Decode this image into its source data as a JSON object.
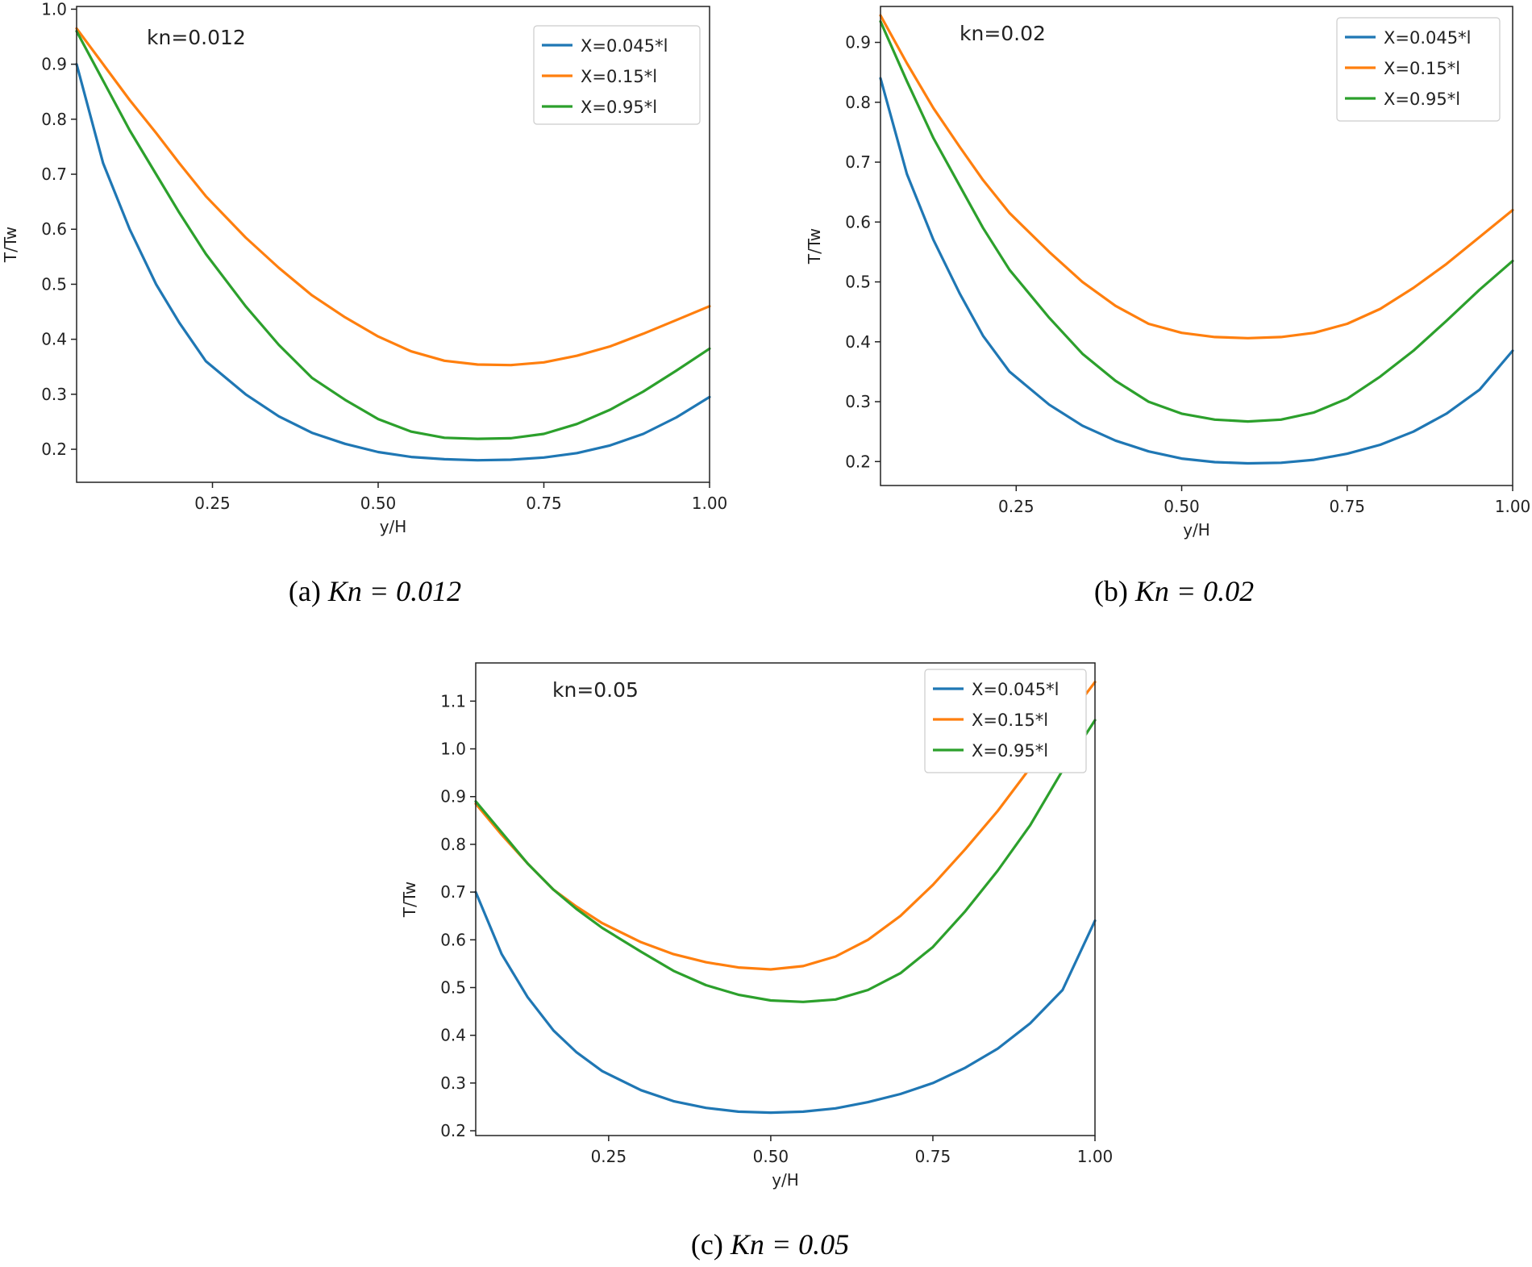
{
  "chart_data": [
    {
      "type": "line",
      "annotation": "kn=0.012",
      "xlabel": "y/H",
      "ylabel": "T/Tw",
      "xlim": [
        0.045,
        1.0
      ],
      "ylim": [
        0.14,
        1.005
      ],
      "xticks": [
        0.25,
        0.5,
        0.75,
        1.0
      ],
      "xtick_labels": [
        "0.25",
        "0.50",
        "0.75",
        "1.00"
      ],
      "yticks": [
        0.2,
        0.3,
        0.4,
        0.5,
        0.6,
        0.7,
        0.8,
        0.9,
        1.0
      ],
      "ytick_labels": [
        "0.2",
        "0.3",
        "0.4",
        "0.5",
        "0.6",
        "0.7",
        "0.8",
        "0.9",
        "1.0"
      ],
      "legend_position": "top-right",
      "caption": {
        "label": "(a)",
        "text": "Kn = 0.012"
      },
      "x": [
        0.045,
        0.085,
        0.125,
        0.165,
        0.2,
        0.24,
        0.3,
        0.35,
        0.4,
        0.45,
        0.5,
        0.55,
        0.6,
        0.65,
        0.7,
        0.75,
        0.8,
        0.85,
        0.9,
        0.95,
        1.0
      ],
      "series": [
        {
          "name": "X=0.045*l",
          "color": "#1f77b4",
          "values": [
            0.9,
            0.72,
            0.6,
            0.5,
            0.43,
            0.36,
            0.3,
            0.26,
            0.23,
            0.21,
            0.195,
            0.186,
            0.182,
            0.18,
            0.181,
            0.185,
            0.193,
            0.207,
            0.228,
            0.258,
            0.295
          ]
        },
        {
          "name": "X=0.15*l",
          "color": "#ff7f0e",
          "values": [
            0.965,
            0.9,
            0.835,
            0.775,
            0.72,
            0.66,
            0.585,
            0.53,
            0.48,
            0.44,
            0.405,
            0.378,
            0.361,
            0.354,
            0.353,
            0.358,
            0.37,
            0.387,
            0.41,
            0.435,
            0.46
          ]
        },
        {
          "name": "X=0.95*l",
          "color": "#2ca02c",
          "values": [
            0.96,
            0.87,
            0.78,
            0.7,
            0.63,
            0.555,
            0.46,
            0.39,
            0.33,
            0.29,
            0.255,
            0.232,
            0.221,
            0.219,
            0.22,
            0.228,
            0.246,
            0.272,
            0.305,
            0.343,
            0.383
          ]
        }
      ]
    },
    {
      "type": "line",
      "annotation": "kn=0.02",
      "xlabel": "y/H",
      "ylabel": "T/Tw",
      "xlim": [
        0.045,
        1.0
      ],
      "ylim": [
        0.16,
        0.96
      ],
      "xticks": [
        0.25,
        0.5,
        0.75,
        1.0
      ],
      "xtick_labels": [
        "0.25",
        "0.50",
        "0.75",
        "1.00"
      ],
      "yticks": [
        0.2,
        0.3,
        0.4,
        0.5,
        0.6,
        0.7,
        0.8,
        0.9
      ],
      "ytick_labels": [
        "0.2",
        "0.3",
        "0.4",
        "0.5",
        "0.6",
        "0.7",
        "0.8",
        "0.9"
      ],
      "legend_position": "top-right",
      "caption": {
        "label": "(b)",
        "text": "Kn = 0.02"
      },
      "x": [
        0.045,
        0.085,
        0.125,
        0.165,
        0.2,
        0.24,
        0.3,
        0.35,
        0.4,
        0.45,
        0.5,
        0.55,
        0.6,
        0.65,
        0.7,
        0.75,
        0.8,
        0.85,
        0.9,
        0.95,
        1.0
      ],
      "series": [
        {
          "name": "X=0.045*l",
          "color": "#1f77b4",
          "values": [
            0.84,
            0.68,
            0.57,
            0.48,
            0.41,
            0.35,
            0.295,
            0.26,
            0.235,
            0.217,
            0.205,
            0.199,
            0.197,
            0.198,
            0.203,
            0.213,
            0.228,
            0.25,
            0.28,
            0.32,
            0.385
          ]
        },
        {
          "name": "X=0.15*l",
          "color": "#ff7f0e",
          "values": [
            0.945,
            0.865,
            0.79,
            0.725,
            0.67,
            0.615,
            0.55,
            0.5,
            0.46,
            0.43,
            0.415,
            0.408,
            0.406,
            0.408,
            0.415,
            0.43,
            0.455,
            0.49,
            0.53,
            0.575,
            0.62
          ]
        },
        {
          "name": "X=0.95*l",
          "color": "#2ca02c",
          "values": [
            0.935,
            0.835,
            0.74,
            0.66,
            0.59,
            0.52,
            0.44,
            0.38,
            0.335,
            0.3,
            0.28,
            0.27,
            0.267,
            0.27,
            0.282,
            0.305,
            0.342,
            0.385,
            0.435,
            0.487,
            0.535
          ]
        }
      ]
    },
    {
      "type": "line",
      "annotation": "kn=0.05",
      "xlabel": "y/H",
      "ylabel": "T/Tw",
      "xlim": [
        0.045,
        1.0
      ],
      "ylim": [
        0.19,
        1.18
      ],
      "xticks": [
        0.25,
        0.5,
        0.75,
        1.0
      ],
      "xtick_labels": [
        "0.25",
        "0.50",
        "0.75",
        "1.00"
      ],
      "yticks": [
        0.2,
        0.3,
        0.4,
        0.5,
        0.6,
        0.7,
        0.8,
        0.9,
        1.0,
        1.1
      ],
      "ytick_labels": [
        "0.2",
        "0.3",
        "0.4",
        "0.5",
        "0.6",
        "0.7",
        "0.8",
        "0.9",
        "1.0",
        "1.1"
      ],
      "legend_position": "top-right",
      "caption": {
        "label": "(c)",
        "text": "Kn = 0.05"
      },
      "x": [
        0.045,
        0.085,
        0.125,
        0.165,
        0.2,
        0.24,
        0.3,
        0.35,
        0.4,
        0.45,
        0.5,
        0.55,
        0.6,
        0.65,
        0.7,
        0.75,
        0.8,
        0.85,
        0.9,
        0.95,
        1.0
      ],
      "series": [
        {
          "name": "X=0.045*l",
          "color": "#1f77b4",
          "values": [
            0.7,
            0.57,
            0.48,
            0.41,
            0.365,
            0.325,
            0.285,
            0.262,
            0.248,
            0.24,
            0.238,
            0.24,
            0.247,
            0.26,
            0.277,
            0.3,
            0.332,
            0.372,
            0.425,
            0.495,
            0.64
          ]
        },
        {
          "name": "X=0.15*l",
          "color": "#ff7f0e",
          "values": [
            0.885,
            0.82,
            0.76,
            0.705,
            0.67,
            0.635,
            0.595,
            0.57,
            0.553,
            0.542,
            0.538,
            0.545,
            0.565,
            0.6,
            0.65,
            0.715,
            0.79,
            0.87,
            0.96,
            1.05,
            1.14
          ]
        },
        {
          "name": "X=0.95*l",
          "color": "#2ca02c",
          "values": [
            0.89,
            0.825,
            0.76,
            0.705,
            0.665,
            0.625,
            0.575,
            0.535,
            0.505,
            0.485,
            0.473,
            0.47,
            0.475,
            0.495,
            0.53,
            0.585,
            0.66,
            0.745,
            0.84,
            0.955,
            1.06
          ]
        }
      ]
    }
  ]
}
